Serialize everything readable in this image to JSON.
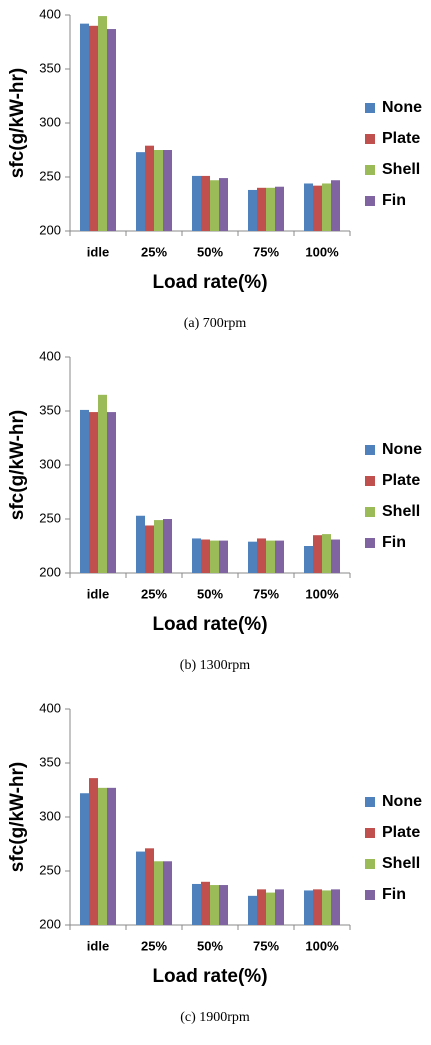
{
  "chart_data": [
    {
      "type": "bar",
      "caption": "(a)  700rpm",
      "xlabel": "Load rate(%)",
      "ylabel": "sfc(g/kW-hr)",
      "categories": [
        "idle",
        "25%",
        "50%",
        "75%",
        "100%"
      ],
      "series": [
        {
          "name": "None",
          "color": "#4f81bd",
          "values": [
            392,
            273,
            251,
            238,
            244
          ]
        },
        {
          "name": "Plate",
          "color": "#c0504d",
          "values": [
            390,
            279,
            251,
            240,
            242
          ]
        },
        {
          "name": "Shell",
          "color": "#9bbb59",
          "values": [
            399,
            275,
            247,
            240,
            244
          ]
        },
        {
          "name": "Fin",
          "color": "#8064a2",
          "values": [
            387,
            275,
            249,
            241,
            247
          ]
        }
      ],
      "ylim": [
        200,
        400
      ],
      "yticks": [
        200,
        250,
        300,
        350,
        400
      ],
      "legend": "right"
    },
    {
      "type": "bar",
      "caption": "(b)  1300rpm",
      "xlabel": "Load rate(%)",
      "ylabel": "sfc(g/kW-hr)",
      "categories": [
        "idle",
        "25%",
        "50%",
        "75%",
        "100%"
      ],
      "series": [
        {
          "name": "None",
          "color": "#4f81bd",
          "values": [
            351,
            253,
            232,
            229,
            225
          ]
        },
        {
          "name": "Plate",
          "color": "#c0504d",
          "values": [
            349,
            244,
            231,
            232,
            235
          ]
        },
        {
          "name": "Shell",
          "color": "#9bbb59",
          "values": [
            365,
            249,
            230,
            230,
            236
          ]
        },
        {
          "name": "Fin",
          "color": "#8064a2",
          "values": [
            349,
            250,
            230,
            230,
            231
          ]
        }
      ],
      "ylim": [
        200,
        400
      ],
      "yticks": [
        200,
        250,
        300,
        350,
        400
      ],
      "legend": "right"
    },
    {
      "type": "bar",
      "caption": "(c)  1900rpm",
      "xlabel": "Load rate(%)",
      "ylabel": "sfc(g/kW-hr)",
      "categories": [
        "idle",
        "25%",
        "50%",
        "75%",
        "100%"
      ],
      "series": [
        {
          "name": "None",
          "color": "#4f81bd",
          "values": [
            322,
            268,
            238,
            227,
            232
          ]
        },
        {
          "name": "Plate",
          "color": "#c0504d",
          "values": [
            336,
            271,
            240,
            233,
            233
          ]
        },
        {
          "name": "Shell",
          "color": "#9bbb59",
          "values": [
            327,
            259,
            237,
            230,
            232
          ]
        },
        {
          "name": "Fin",
          "color": "#8064a2",
          "values": [
            327,
            259,
            237,
            233,
            233
          ]
        }
      ],
      "ylim": [
        200,
        400
      ],
      "yticks": [
        200,
        250,
        300,
        350,
        400
      ],
      "legend": "right"
    }
  ]
}
